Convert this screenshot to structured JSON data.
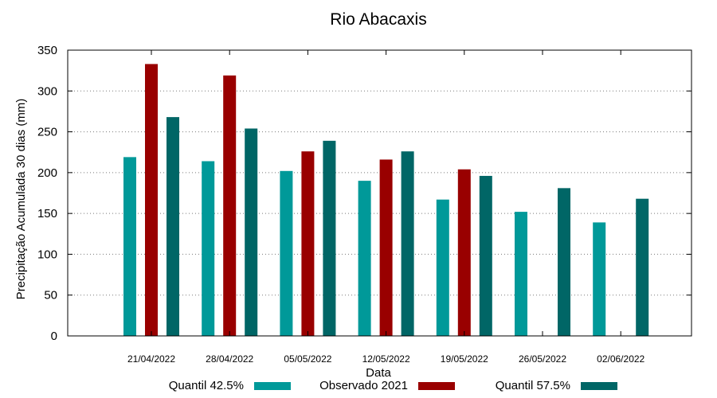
{
  "chart_data": {
    "type": "bar",
    "title": "Rio Abacaxis",
    "xlabel": "Data",
    "ylabel": "Precipitação Acumulada 30 dias (mm)",
    "ylim": [
      0,
      350
    ],
    "yticks": [
      0,
      50,
      100,
      150,
      200,
      250,
      300,
      350
    ],
    "grid": true,
    "legend_position": "bottom",
    "categories": [
      "21/04/2022",
      "28/04/2022",
      "05/05/2022",
      "12/05/2022",
      "19/05/2022",
      "26/05/2022",
      "02/06/2022"
    ],
    "series": [
      {
        "name": "Quantil 42.5%",
        "color": "#009999",
        "values": [
          219,
          214,
          202,
          190,
          167,
          152,
          139
        ]
      },
      {
        "name": "Observado 2021",
        "color": "#990000",
        "values": [
          333,
          319,
          226,
          216,
          204,
          null,
          null
        ]
      },
      {
        "name": "Quantil 57.5%",
        "color": "#006666",
        "values": [
          268,
          254,
          239,
          226,
          196,
          181,
          168
        ]
      }
    ]
  }
}
